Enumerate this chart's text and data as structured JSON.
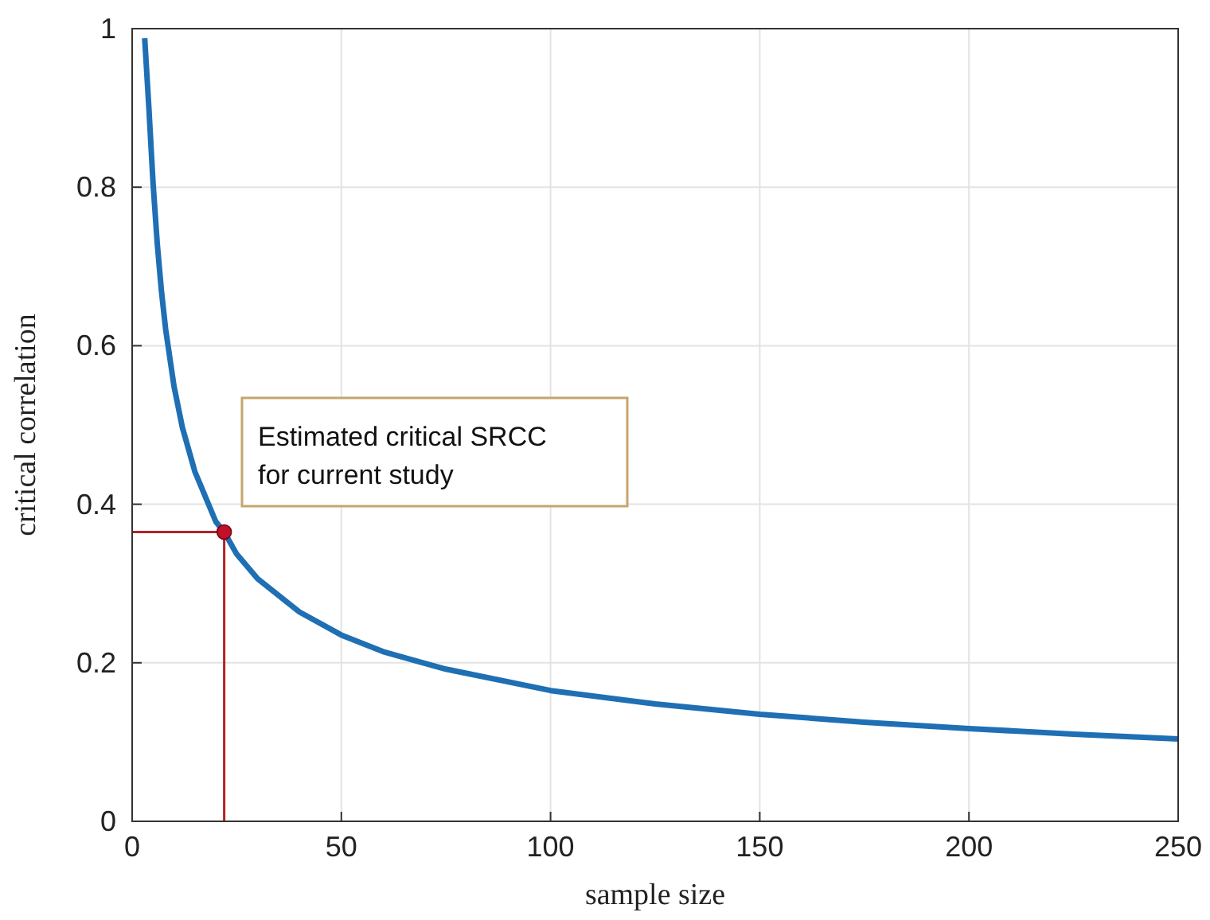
{
  "chart_data": {
    "type": "line",
    "xlabel": "sample size",
    "ylabel": "critical correlation",
    "xlim": [
      0,
      250
    ],
    "ylim": [
      0,
      1
    ],
    "xticks": [
      0,
      50,
      100,
      150,
      200,
      250
    ],
    "yticks": [
      0,
      0.2,
      0.4,
      0.6,
      0.8,
      1
    ],
    "grid": true,
    "series": [
      {
        "type": "line",
        "color": "#b22222",
        "x": [
          0,
          22,
          22
        ],
        "values": [
          0.365,
          0.365,
          0
        ],
        "marker": "none"
      },
      {
        "type": "line",
        "color": "#1f6fb4",
        "x": [
          3,
          4,
          5,
          6,
          7,
          8,
          10,
          12,
          15,
          20,
          22,
          25,
          30,
          40,
          50,
          60,
          75,
          100,
          125,
          150,
          175,
          200,
          225,
          250
        ],
        "values": [
          0.988,
          0.9,
          0.805,
          0.729,
          0.669,
          0.621,
          0.549,
          0.497,
          0.441,
          0.378,
          0.365,
          0.337,
          0.306,
          0.264,
          0.235,
          0.214,
          0.192,
          0.165,
          0.148,
          0.135,
          0.125,
          0.117,
          0.11,
          0.104
        ],
        "marker": "none"
      },
      {
        "type": "scatter",
        "color": "#c0102a",
        "x": [
          22
        ],
        "values": [
          0.365
        ],
        "marker": "circle"
      }
    ],
    "annotations": [
      "Estimated critical SRCC\nfor current study"
    ]
  }
}
